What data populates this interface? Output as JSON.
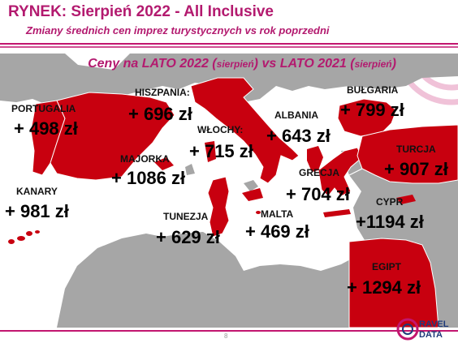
{
  "header": {
    "title": "RYNEK: Sierpień 2022 - All Inclusive",
    "subtitle": "Zmiany średnich cen imprez turystycznych vs rok poprzedni"
  },
  "banner": {
    "part1": "Ceny na LATO 2022 (",
    "paren1": "sierpień",
    "part2": ") vs  LATO 2021 (",
    "paren2": "sierpień",
    "part3": ")"
  },
  "destinations": [
    {
      "name": "PORTUGALIA",
      "price": "+ 498 zł"
    },
    {
      "name": "HISZPANIA:",
      "price": "+ 696 zł"
    },
    {
      "name": "WŁOCHY:",
      "price": "+ 715 zł"
    },
    {
      "name": "ALBANIA",
      "price": "+ 643 zł"
    },
    {
      "name": "BUŁGARIA",
      "price": "+ 799 zł"
    },
    {
      "name": "MAJORKA",
      "price": "+ 1086 zł"
    },
    {
      "name": "TURCJA",
      "price": "+ 907 zł"
    },
    {
      "name": "KANARY",
      "price": "+ 981 zł"
    },
    {
      "name": "GRECJA",
      "price": "+ 704 zł"
    },
    {
      "name": "CYPR",
      "price": "+1194 zł"
    },
    {
      "name": "TUNEZJA",
      "price": "+ 629 zł"
    },
    {
      "name": "MALTA",
      "price": "+ 469 zł"
    },
    {
      "name": "EGIPT",
      "price": "+ 1294 zł"
    }
  ],
  "footer": {
    "page": "8",
    "logo_top": "RAVEL",
    "logo_bottom": "DATA"
  },
  "colors": {
    "accent": "#c2166f",
    "highlight": "#c8000f",
    "land": "#a6a6a6",
    "sea": "#ffffff"
  }
}
